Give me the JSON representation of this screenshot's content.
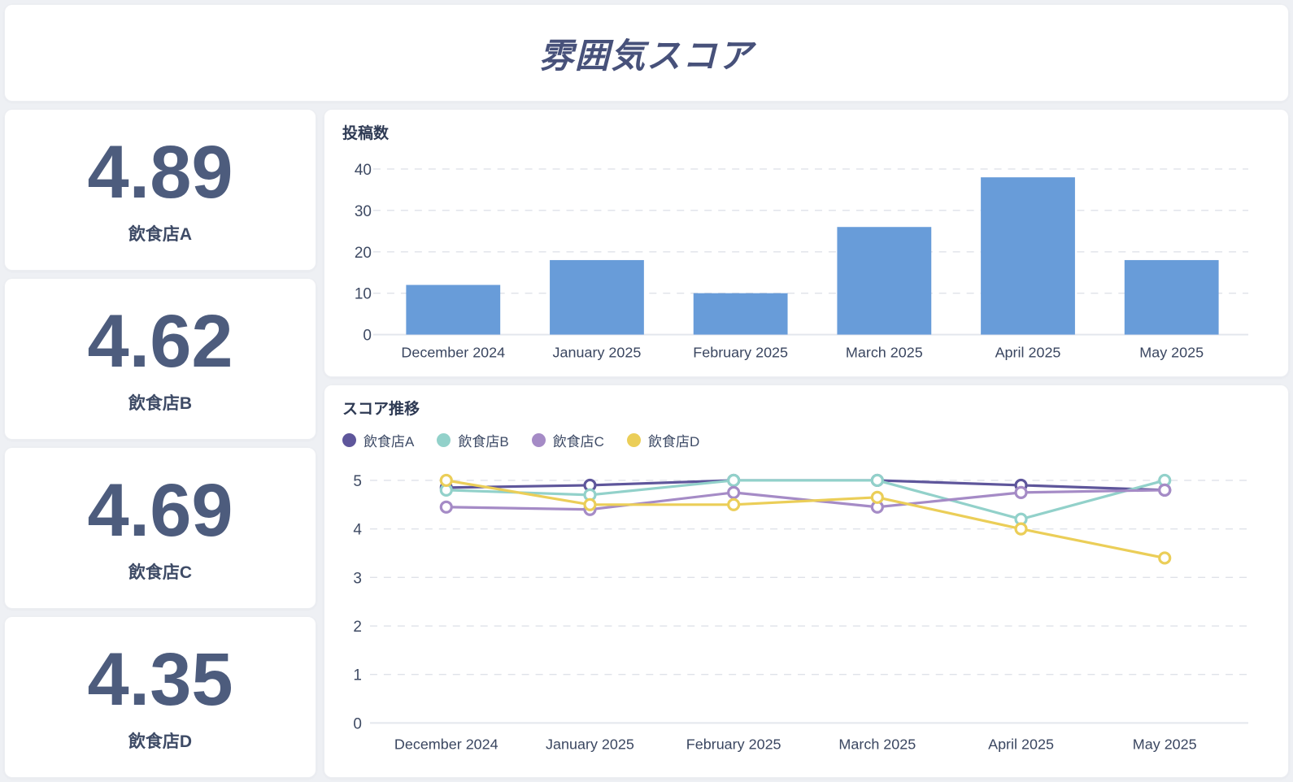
{
  "title": "雰囲気スコア",
  "theme": {
    "page_background": "#eef0f4",
    "card_background": "#ffffff",
    "title_color": "#47517a",
    "score_color": "#4d5c7d",
    "text_color": "#3e4b66"
  },
  "score_cards": [
    {
      "value": "4.89",
      "label": "飲食店A"
    },
    {
      "value": "4.62",
      "label": "飲食店B"
    },
    {
      "value": "4.69",
      "label": "飲食店C"
    },
    {
      "value": "4.35",
      "label": "飲食店D"
    }
  ],
  "chart_data": [
    {
      "type": "bar",
      "title": "投稿数",
      "categories": [
        "December 2024",
        "January 2025",
        "February 2025",
        "March 2025",
        "April 2025",
        "May 2025"
      ],
      "values": [
        12,
        18,
        10,
        26,
        38,
        18
      ],
      "bar_color": "#689cd9",
      "ylim": [
        0,
        40
      ],
      "yticks": [
        0,
        10,
        20,
        30,
        40
      ],
      "grid": "horizontal-dashed",
      "legend_position": "none"
    },
    {
      "type": "line",
      "title": "スコア推移",
      "categories": [
        "December 2024",
        "January 2025",
        "February 2025",
        "March 2025",
        "April 2025",
        "May 2025"
      ],
      "series": [
        {
          "name": "飲食店A",
          "color": "#5e569b",
          "values": [
            4.85,
            4.9,
            5.0,
            5.0,
            4.9,
            4.8
          ]
        },
        {
          "name": "飲食店B",
          "color": "#92d1ca",
          "values": [
            4.8,
            4.7,
            5.0,
            5.0,
            4.2,
            5.0
          ]
        },
        {
          "name": "飲食店C",
          "color": "#a58bc6",
          "values": [
            4.45,
            4.4,
            4.75,
            4.45,
            4.75,
            4.8
          ]
        },
        {
          "name": "飲食店D",
          "color": "#ebce58",
          "values": [
            5.0,
            4.5,
            4.5,
            4.65,
            4.0,
            3.4
          ]
        }
      ],
      "ylim": [
        0,
        5
      ],
      "yticks": [
        0,
        1,
        2,
        3,
        4,
        5
      ],
      "grid": "horizontal-dashed",
      "legend_position": "top"
    }
  ]
}
